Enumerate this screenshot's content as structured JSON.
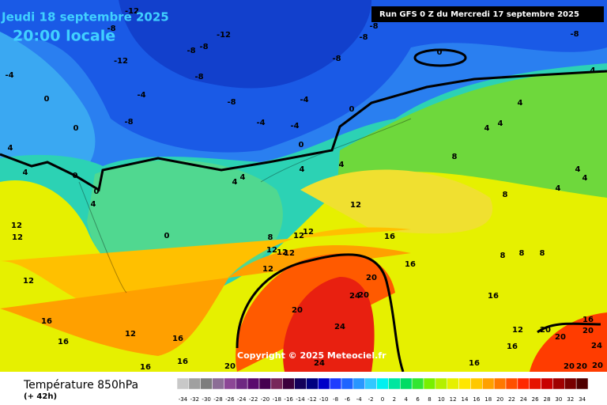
{
  "header": {
    "date": "Jeudi 18 septembre 2025",
    "time": "20:00 locale",
    "run": "Run GFS 0 Z du Mercredi 17 septembre 2025"
  },
  "copyright": "Copyright © 2025 Meteociel.fr",
  "contour_labels": [
    -12,
    -12,
    -12,
    -8,
    -8,
    -8,
    -8,
    -8,
    -8,
    -8,
    -8,
    -8,
    -8,
    -4,
    -4,
    -4,
    -4,
    -4,
    0,
    0,
    0,
    0,
    0,
    0,
    0,
    0,
    4,
    4,
    4,
    4,
    4,
    4,
    4,
    4,
    4,
    4,
    4,
    4,
    4,
    4,
    8,
    8,
    8,
    8,
    8,
    8,
    12,
    12,
    12,
    12,
    12,
    12,
    12,
    12,
    12,
    12,
    12,
    12,
    16,
    16,
    16,
    16,
    16,
    16,
    16,
    16,
    16,
    16,
    16,
    20,
    20,
    20,
    20,
    20,
    20,
    20,
    20,
    20,
    20,
    24,
    24,
    24,
    24
  ],
  "legend": {
    "title": "Température 850hPa",
    "lead": "(+ 42h)",
    "scale": [
      {
        "value": -34,
        "color": "#c8c8c8"
      },
      {
        "value": -32,
        "color": "#a0a0a0"
      },
      {
        "value": -30,
        "color": "#7d7d7d"
      },
      {
        "value": -28,
        "color": "#8c6e96"
      },
      {
        "value": -26,
        "color": "#8c4696"
      },
      {
        "value": -24,
        "color": "#6e2882"
      },
      {
        "value": -22,
        "color": "#5a0a6e"
      },
      {
        "value": -20,
        "color": "#460050"
      },
      {
        "value": -18,
        "color": "#78285a"
      },
      {
        "value": -16,
        "color": "#3c003c"
      },
      {
        "value": -14,
        "color": "#14005a"
      },
      {
        "value": -12,
        "color": "#000080"
      },
      {
        "value": -10,
        "color": "#0000c8"
      },
      {
        "value": -8,
        "color": "#1e3cff"
      },
      {
        "value": -6,
        "color": "#1e64ff"
      },
      {
        "value": -4,
        "color": "#2896ff"
      },
      {
        "value": -2,
        "color": "#32c8ff"
      },
      {
        "value": 0,
        "color": "#00f0f0"
      },
      {
        "value": 2,
        "color": "#00e6a0"
      },
      {
        "value": 4,
        "color": "#00dc64"
      },
      {
        "value": 6,
        "color": "#32e632"
      },
      {
        "value": 8,
        "color": "#78f000"
      },
      {
        "value": 10,
        "color": "#b4f000"
      },
      {
        "value": 12,
        "color": "#e6f000"
      },
      {
        "value": 14,
        "color": "#ffe600"
      },
      {
        "value": 16,
        "color": "#ffc800"
      },
      {
        "value": 18,
        "color": "#ffa000"
      },
      {
        "value": 20,
        "color": "#ff7800"
      },
      {
        "value": 22,
        "color": "#ff5000"
      },
      {
        "value": 24,
        "color": "#ff2800"
      },
      {
        "value": 26,
        "color": "#e61400"
      },
      {
        "value": 28,
        "color": "#c80000"
      },
      {
        "value": 30,
        "color": "#a00000"
      },
      {
        "value": 32,
        "color": "#780000"
      },
      {
        "value": 34,
        "color": "#500000"
      }
    ]
  }
}
